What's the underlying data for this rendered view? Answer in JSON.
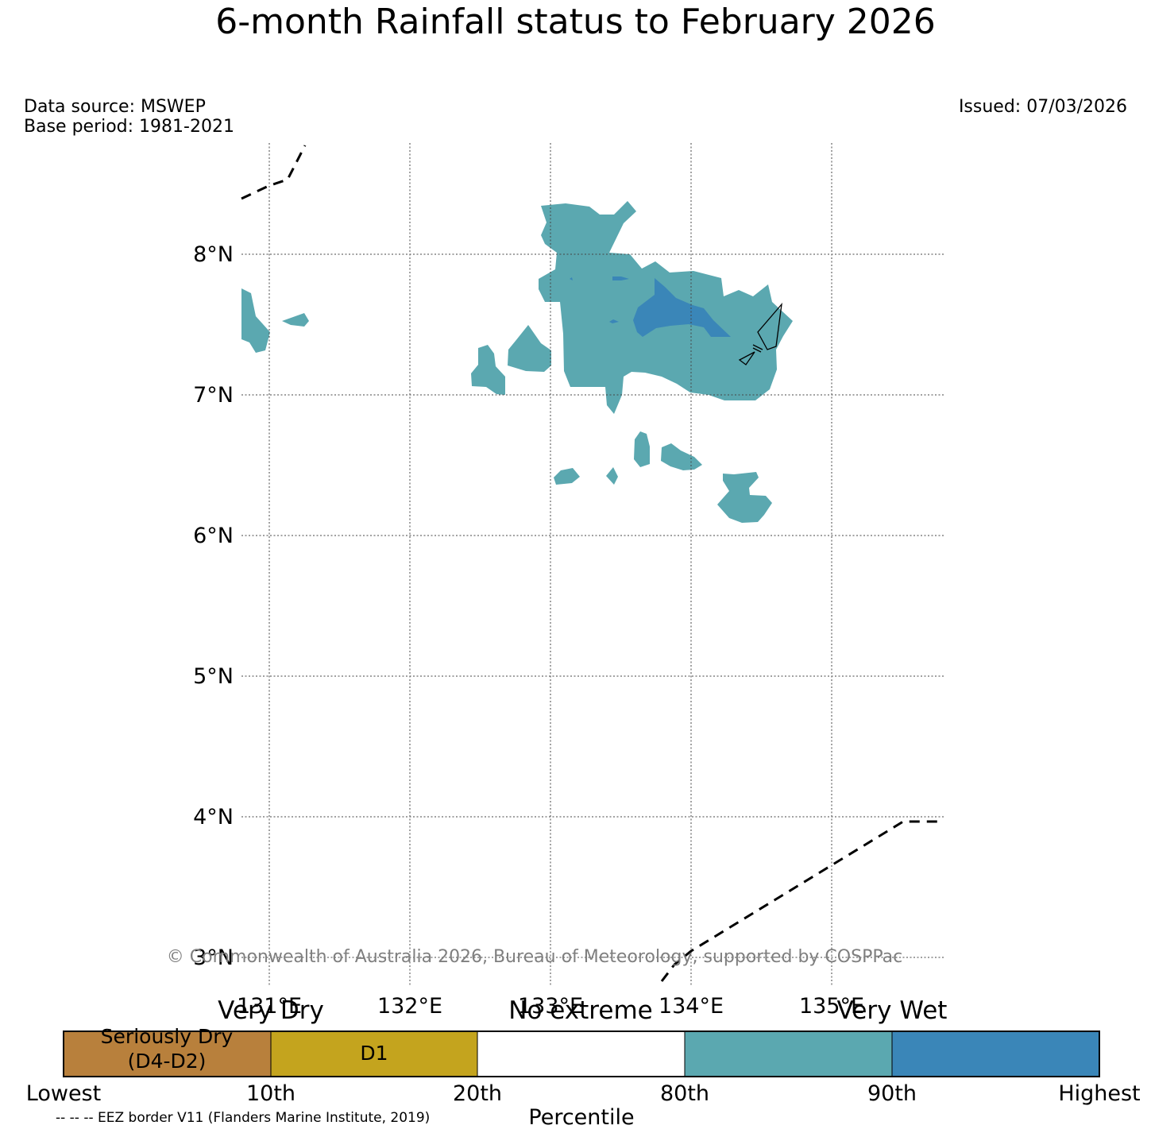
{
  "title": "6-month Rainfall status to February 2026",
  "data_source": "Data source: MSWEP",
  "base_period": "Base period: 1981-2021",
  "issued": "Issued: 07/03/2026",
  "copyright": "© Commonwealth of Australia 2026, Bureau of Meteorology, supported by COSPPac",
  "eez_note": "-- -- -- EEZ border V11 (Flanders Marine Institute, 2019)",
  "chart_data": {
    "type": "heatmap",
    "title": "6-month Rainfall status to February 2026",
    "x_ticks": [
      "131°E",
      "132°E",
      "133°E",
      "134°E",
      "135°E"
    ],
    "y_ticks": [
      "8°N",
      "7°N",
      "6°N",
      "5°N",
      "4°N",
      "3°N"
    ],
    "xlim": [
      130.8,
      135.8
    ],
    "ylim": [
      2.7,
      8.8
    ],
    "grid": true,
    "legend": {
      "categories": [
        {
          "label": "Very Dry"
        },
        {
          "label": "No extreme"
        },
        {
          "label": "Very Wet"
        }
      ],
      "bins": [
        {
          "label_line1": "Seriously Dry",
          "label_line2": "(D4-D2)",
          "color": "#b8803c"
        },
        {
          "label_line1": "D1",
          "label_line2": "",
          "color": "#c4a41e"
        },
        {
          "label_line1": "",
          "label_line2": "",
          "color": "#ffffff"
        },
        {
          "label_line1": "",
          "label_line2": "",
          "color": "#5ba8b0"
        },
        {
          "label_line1": "",
          "label_line2": "",
          "color": "#3a86b8"
        }
      ],
      "ticks": [
        "Lowest",
        "10th",
        "20th",
        "80th",
        "90th",
        "Highest"
      ],
      "xlabel": "Percentile"
    },
    "colors": {
      "wet_80_90": "#5ba8b0",
      "wet_90_plus": "#3a86b8"
    }
  }
}
